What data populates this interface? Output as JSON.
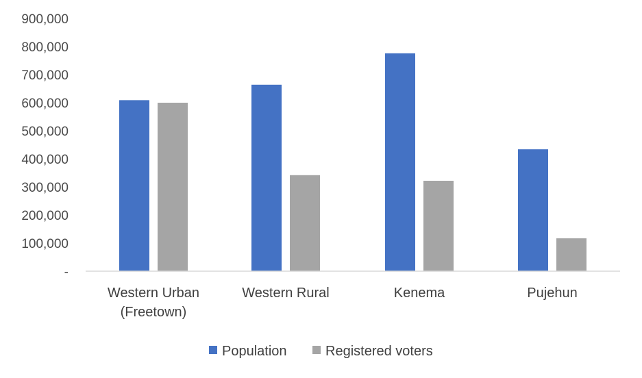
{
  "chart_data": {
    "type": "bar",
    "categories": [
      [
        "Western Urban",
        "(Freetown)"
      ],
      [
        "Western Rural"
      ],
      [
        "Kenema"
      ],
      [
        "Pujehun"
      ]
    ],
    "series": [
      {
        "name": "Population",
        "color": "#4472c4",
        "values": [
          609000,
          664000,
          776000,
          434000
        ]
      },
      {
        "name": "Registered voters",
        "color": "#a5a5a5",
        "values": [
          600000,
          342000,
          322000,
          117000
        ]
      }
    ],
    "y_ticks": [
      {
        "value": 0,
        "label": "-"
      },
      {
        "value": 100000,
        "label": "100,000"
      },
      {
        "value": 200000,
        "label": "200,000"
      },
      {
        "value": 300000,
        "label": "300,000"
      },
      {
        "value": 400000,
        "label": "400,000"
      },
      {
        "value": 500000,
        "label": "500,000"
      },
      {
        "value": 600000,
        "label": "600,000"
      },
      {
        "value": 700000,
        "label": "700,000"
      },
      {
        "value": 800000,
        "label": "800,000"
      },
      {
        "value": 900000,
        "label": "900,000"
      }
    ],
    "ylim": [
      0,
      950000
    ],
    "grid": false,
    "legend": "bottom-center"
  }
}
